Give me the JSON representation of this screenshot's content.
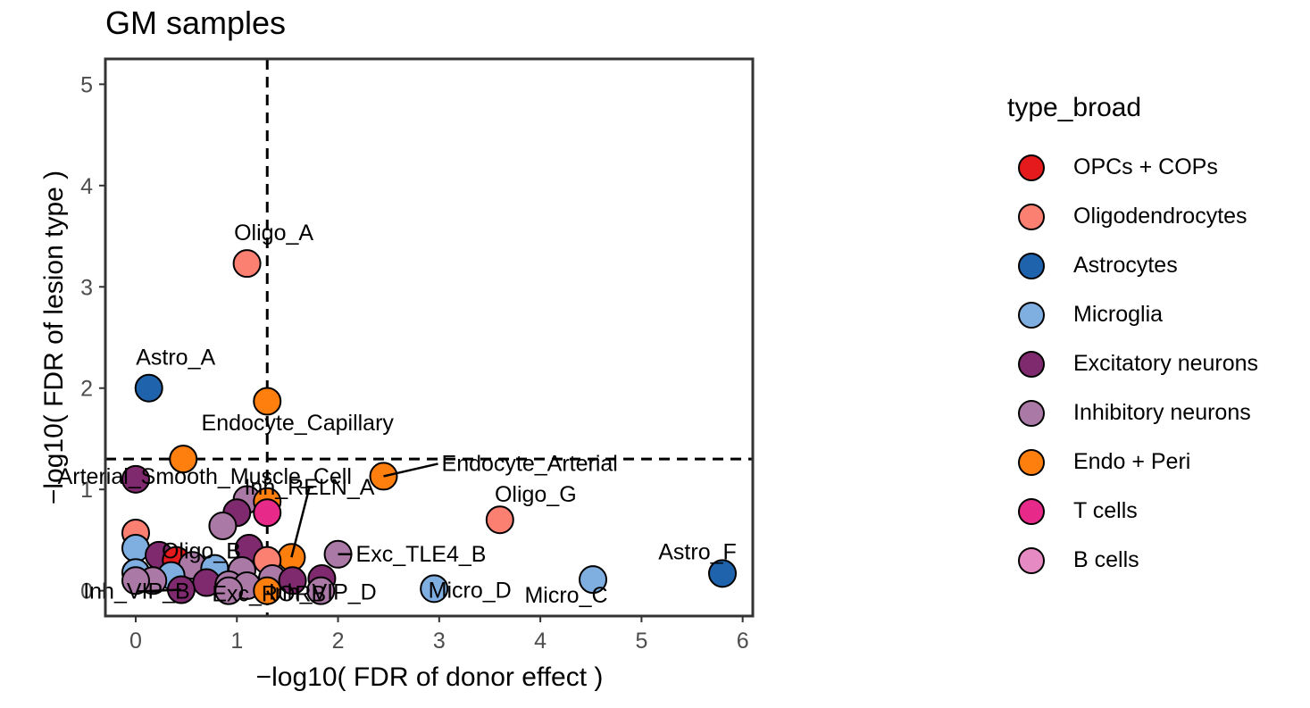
{
  "chart_data": {
    "type": "scatter",
    "title": "GM samples",
    "xlabel": "−log10( FDR of donor effect )",
    "ylabel": "−log10( FDR of lesion type )",
    "xlim": [
      -0.3,
      6.1
    ],
    "ylim": [
      -0.25,
      5.25
    ],
    "xticks": [
      0,
      1,
      2,
      3,
      4,
      5,
      6
    ],
    "yticks": [
      0,
      1,
      2,
      3,
      4,
      5
    ],
    "threshold_lines": {
      "x": 1.3,
      "y": 1.3,
      "style": "dashed"
    },
    "grid": false,
    "legend": {
      "title": "type_broad",
      "position": "right",
      "entries": [
        {
          "label": "OPCs + COPs",
          "color": "#E41A1C"
        },
        {
          "label": "Oligodendrocytes",
          "color": "#FB8072"
        },
        {
          "label": "Astrocytes",
          "color": "#1F63AD"
        },
        {
          "label": "Microglia",
          "color": "#7FAEE0"
        },
        {
          "label": "Excitatory neurons",
          "color": "#7F2A6E"
        },
        {
          "label": "Inhibitory neurons",
          "color": "#AA79A6"
        },
        {
          "label": "Endo + Peri",
          "color": "#FF7F0E"
        },
        {
          "label": "T cells",
          "color": "#E7298A"
        },
        {
          "label": "B cells",
          "color": "#E68AC3"
        }
      ]
    },
    "points": [
      {
        "x": 1.1,
        "y": 3.23,
        "group": "Oligodendrocytes"
      },
      {
        "x": 0.13,
        "y": 2.0,
        "group": "Astrocytes"
      },
      {
        "x": 1.3,
        "y": 1.87,
        "group": "Endo + Peri"
      },
      {
        "x": 0.47,
        "y": 1.3,
        "group": "Endo + Peri"
      },
      {
        "x": 2.45,
        "y": 1.13,
        "group": "Endo + Peri"
      },
      {
        "x": 0.0,
        "y": 1.1,
        "group": "Excitatory neurons"
      },
      {
        "x": 1.1,
        "y": 0.9,
        "group": "Inhibitory neurons"
      },
      {
        "x": 1.3,
        "y": 0.88,
        "group": "Endo + Peri"
      },
      {
        "x": 1.3,
        "y": 0.77,
        "group": "T cells"
      },
      {
        "x": 1.0,
        "y": 0.77,
        "group": "Excitatory neurons"
      },
      {
        "x": 3.6,
        "y": 0.7,
        "group": "Oligodendrocytes"
      },
      {
        "x": 0.86,
        "y": 0.64,
        "group": "Inhibitory neurons"
      },
      {
        "x": 0.0,
        "y": 0.57,
        "group": "Oligodendrocytes"
      },
      {
        "x": 1.12,
        "y": 0.42,
        "group": "Excitatory neurons"
      },
      {
        "x": 0.0,
        "y": 0.42,
        "group": "Microglia"
      },
      {
        "x": 2.0,
        "y": 0.36,
        "group": "Inhibitory neurons"
      },
      {
        "x": 0.23,
        "y": 0.35,
        "group": "Excitatory neurons"
      },
      {
        "x": 1.54,
        "y": 0.33,
        "group": "Endo + Peri"
      },
      {
        "x": 0.4,
        "y": 0.3,
        "group": "OPCs + COPs"
      },
      {
        "x": 0.56,
        "y": 0.25,
        "group": "Inhibitory neurons"
      },
      {
        "x": 0.78,
        "y": 0.22,
        "group": "Microglia"
      },
      {
        "x": 1.05,
        "y": 0.2,
        "group": "Inhibitory neurons"
      },
      {
        "x": 5.8,
        "y": 0.17,
        "group": "Astrocytes"
      },
      {
        "x": 0.0,
        "y": 0.18,
        "group": "Microglia"
      },
      {
        "x": 0.35,
        "y": 0.15,
        "group": "Microglia"
      },
      {
        "x": 1.3,
        "y": 0.3,
        "group": "Oligodendrocytes"
      },
      {
        "x": 1.35,
        "y": 0.12,
        "group": "Inhibitory neurons"
      },
      {
        "x": 1.55,
        "y": 0.1,
        "group": "Excitatory neurons"
      },
      {
        "x": 1.84,
        "y": 0.12,
        "group": "Excitatory neurons"
      },
      {
        "x": 4.52,
        "y": 0.11,
        "group": "Microglia"
      },
      {
        "x": 0.17,
        "y": 0.1,
        "group": "Inhibitory neurons"
      },
      {
        "x": 0.0,
        "y": 0.1,
        "group": "Inhibitory neurons"
      },
      {
        "x": 0.7,
        "y": 0.08,
        "group": "Excitatory neurons"
      },
      {
        "x": 0.92,
        "y": 0.06,
        "group": "Inhibitory neurons"
      },
      {
        "x": 1.1,
        "y": 0.05,
        "group": "Inhibitory neurons"
      },
      {
        "x": 2.95,
        "y": 0.02,
        "group": "Microglia"
      },
      {
        "x": 0.45,
        "y": 0.01,
        "group": "Excitatory neurons"
      },
      {
        "x": 0.92,
        "y": 0.0,
        "group": "Inhibitory neurons"
      },
      {
        "x": 1.3,
        "y": 0.0,
        "group": "Endo + Peri"
      },
      {
        "x": 1.83,
        "y": 0.0,
        "group": "Inhibitory neurons"
      }
    ],
    "annotations": [
      {
        "text": "Oligo_A",
        "x": 1.1,
        "y": 3.23
      },
      {
        "text": "Astro_A",
        "x": 0.13,
        "y": 2.0
      },
      {
        "text": "Endocyte_Capillary",
        "x": 0.47,
        "y": 1.3
      },
      {
        "text": "Endocyte_Arterial",
        "x": 2.45,
        "y": 1.13
      },
      {
        "text": "Arterial_Smooth_Muscle_Cell",
        "x": 1.3,
        "y": 0.88
      },
      {
        "text": "Inh_RELN_A",
        "x": 1.54,
        "y": 0.33
      },
      {
        "text": "Oligo_G",
        "x": 3.6,
        "y": 0.7
      },
      {
        "text": "Exc_TLE4_B",
        "x": 2.0,
        "y": 0.36
      },
      {
        "text": "Oligo_B",
        "x": 0.56,
        "y": 0.25
      },
      {
        "text": "Astro_F",
        "x": 5.8,
        "y": 0.17
      },
      {
        "text": "Micro_C",
        "x": 4.52,
        "y": 0.11
      },
      {
        "text": "Inh_VIP_B",
        "x": 0.45,
        "y": 0.01
      },
      {
        "text": "Exc_RORB",
        "x": 1.3,
        "y": 0.0
      },
      {
        "text": "Inh_VIP_D",
        "x": 1.83,
        "y": 0.0
      },
      {
        "text": "Micro_D",
        "x": 2.95,
        "y": 0.02
      }
    ]
  }
}
